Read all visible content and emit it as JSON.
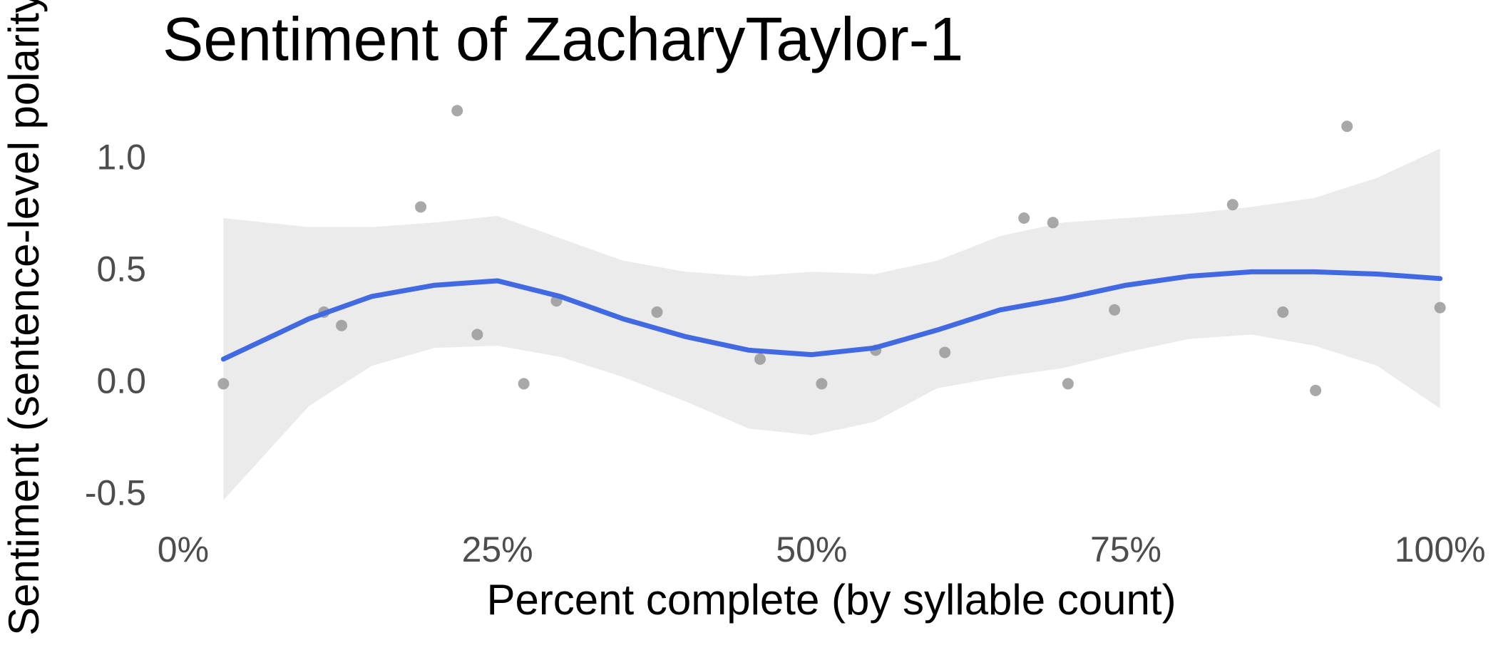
{
  "chart_data": {
    "type": "scatter",
    "title": "Sentiment of ZacharyTaylor-1",
    "x_label": "Percent complete (by syllable count)",
    "y_label": "Sentiment (sentence-level polarity)",
    "xlim": [
      -1.64,
      104.84
    ],
    "ylim": [
      -0.61,
      1.31
    ],
    "xticks": [
      {
        "value": 0,
        "label": "0%"
      },
      {
        "value": 25,
        "label": "25%"
      },
      {
        "value": 50,
        "label": "50%"
      },
      {
        "value": 75,
        "label": "75%"
      },
      {
        "value": 100,
        "label": "100%"
      }
    ],
    "yticks": [
      -0.5,
      {
        "value": 0,
        "label": "0.0"
      },
      0.5,
      {
        "value": 1,
        "label": "1.0"
      }
    ],
    "points": {
      "color": "#999999",
      "x": [
        3.2,
        11.2,
        12.6,
        18.9,
        21.8,
        23.4,
        27.1,
        29.7,
        37.7,
        45.9,
        50.8,
        55.1,
        60.6,
        66.9,
        69.2,
        70.4,
        74.1,
        83.5,
        87.5,
        90.1,
        92.6,
        100
      ],
      "y": [
        0.0,
        0.32,
        0.26,
        0.79,
        1.22,
        0.22,
        0.0,
        0.37,
        0.32,
        0.11,
        0.0,
        0.15,
        0.14,
        0.74,
        0.72,
        0.0,
        0.33,
        0.8,
        0.32,
        -0.03,
        1.15,
        0.34
      ]
    },
    "smooth": {
      "color": "#4169e1",
      "band_color": "#ebebeb",
      "x": [
        3.2,
        10,
        15,
        20,
        25,
        30,
        35,
        40,
        45,
        50,
        55,
        60,
        65,
        70,
        75,
        80,
        85,
        90,
        95,
        100
      ],
      "y": [
        0.11,
        0.29,
        0.39,
        0.44,
        0.46,
        0.39,
        0.29,
        0.21,
        0.15,
        0.13,
        0.16,
        0.24,
        0.33,
        0.38,
        0.44,
        0.48,
        0.5,
        0.5,
        0.49,
        0.47
      ],
      "ymax": [
        0.74,
        0.7,
        0.7,
        0.72,
        0.75,
        0.65,
        0.55,
        0.5,
        0.48,
        0.5,
        0.49,
        0.55,
        0.66,
        0.72,
        0.74,
        0.76,
        0.79,
        0.83,
        0.92,
        1.05
      ],
      "ymin": [
        -0.52,
        -0.1,
        0.08,
        0.16,
        0.17,
        0.12,
        0.03,
        -0.08,
        -0.2,
        -0.23,
        -0.17,
        -0.02,
        0.03,
        0.07,
        0.14,
        0.2,
        0.22,
        0.17,
        0.08,
        -0.11
      ]
    }
  }
}
